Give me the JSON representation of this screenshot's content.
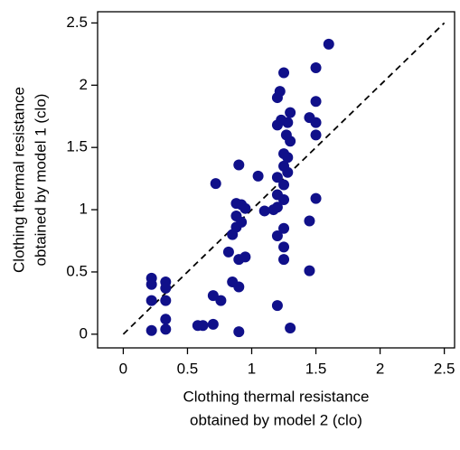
{
  "chart_data": {
    "type": "scatter",
    "x_label": [
      "Clothing thermal resistance",
      "obtained by model 2 (clo)"
    ],
    "y_label": [
      "Clothing thermal resistance",
      "obtained by model 1 (clo)"
    ],
    "xlim": [
      -0.2,
      2.58
    ],
    "ylim": [
      -0.11,
      2.59
    ],
    "xticks": [
      0,
      0.5,
      1,
      1.5,
      2,
      2.5
    ],
    "yticks": [
      0,
      0.5,
      1,
      1.5,
      2,
      2.5
    ],
    "identity_line": [
      0,
      2.5
    ],
    "color": "#10108a",
    "x": [
      0.22,
      0.22,
      0.22,
      0.22,
      0.33,
      0.33,
      0.33,
      0.33,
      0.33,
      0.58,
      0.62,
      0.7,
      0.7,
      0.72,
      0.76,
      0.82,
      0.85,
      0.85,
      0.88,
      0.88,
      0.88,
      0.9,
      0.9,
      0.9,
      0.9,
      0.92,
      0.92,
      0.95,
      0.95,
      1.05,
      1.1,
      1.17,
      1.2,
      1.2,
      1.2,
      1.2,
      1.2,
      1.2,
      1.2,
      1.22,
      1.23,
      1.25,
      1.25,
      1.25,
      1.25,
      1.25,
      1.25,
      1.25,
      1.25,
      1.27,
      1.28,
      1.28,
      1.28,
      1.3,
      1.3,
      1.3,
      1.45,
      1.45,
      1.45,
      1.5,
      1.5,
      1.5,
      1.5,
      1.5,
      1.6
    ],
    "values": [
      0.45,
      0.4,
      0.27,
      0.03,
      0.42,
      0.37,
      0.27,
      0.12,
      0.04,
      0.07,
      0.07,
      0.08,
      0.31,
      1.21,
      0.27,
      0.66,
      0.42,
      0.8,
      0.86,
      0.95,
      1.05,
      0.6,
      0.38,
      0.02,
      1.36,
      1.04,
      0.9,
      1.01,
      0.62,
      1.27,
      0.99,
      1.0,
      1.9,
      1.68,
      1.26,
      1.12,
      1.02,
      0.79,
      0.23,
      1.95,
      1.72,
      2.1,
      1.45,
      1.35,
      1.2,
      1.08,
      0.85,
      0.7,
      0.6,
      1.6,
      1.7,
      1.42,
      1.3,
      1.78,
      1.55,
      0.05,
      1.74,
      0.91,
      0.51,
      2.14,
      1.87,
      1.7,
      1.6,
      1.09,
      2.33
    ]
  }
}
